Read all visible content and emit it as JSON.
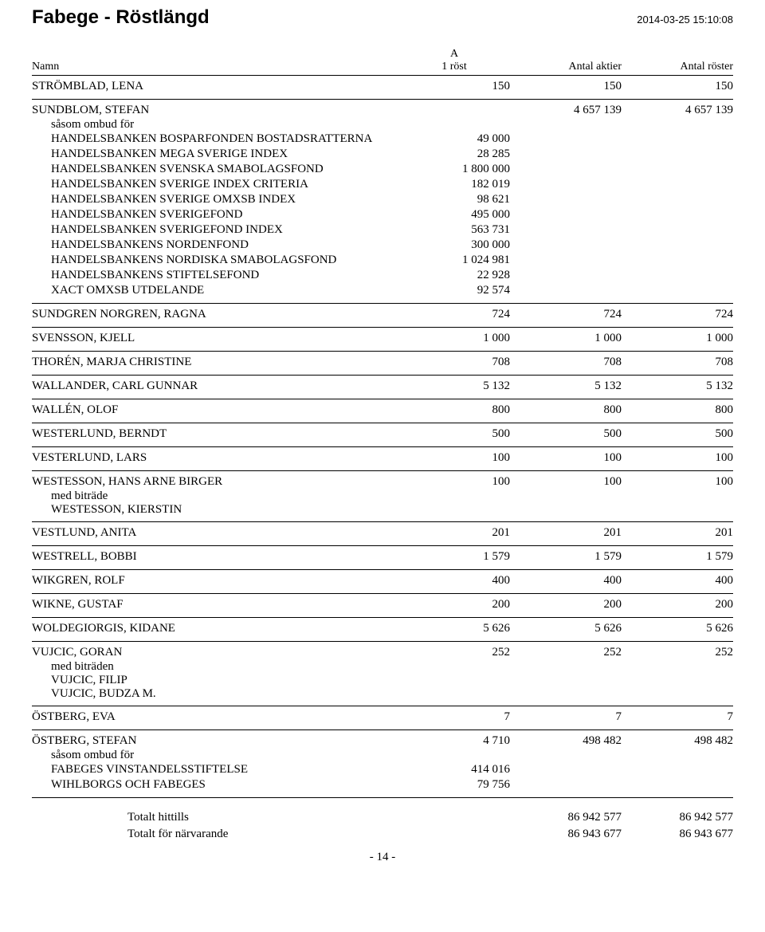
{
  "header": {
    "title": "Fabege - Röstlängd",
    "timestamp": "2014-03-25 15:10:08"
  },
  "columns": {
    "name": "Namn",
    "a_top": "A",
    "a_bottom": "1 röst",
    "antal_aktier": "Antal aktier",
    "antal_roster": "Antal röster"
  },
  "sections": [
    {
      "main": {
        "name": "STRÖMBLAD, LENA",
        "c1": "150",
        "c2": "150",
        "c3": "150"
      }
    },
    {
      "main": {
        "name": "SUNDBLOM, STEFAN",
        "c1": "",
        "c2": "4 657 139",
        "c3": "4 657 139"
      },
      "note": "såsom ombud för",
      "subs": [
        {
          "name": "HANDELSBANKEN BOSPARFONDEN BOSTADSRATTERNA",
          "val": "49 000"
        },
        {
          "name": "HANDELSBANKEN MEGA SVERIGE INDEX",
          "val": "28 285"
        },
        {
          "name": "HANDELSBANKEN SVENSKA SMABOLAGSFOND",
          "val": "1 800 000"
        },
        {
          "name": "HANDELSBANKEN SVERIGE INDEX CRITERIA",
          "val": "182 019"
        },
        {
          "name": "HANDELSBANKEN SVERIGE OMXSB INDEX",
          "val": "98 621"
        },
        {
          "name": "HANDELSBANKEN SVERIGEFOND",
          "val": "495 000"
        },
        {
          "name": "HANDELSBANKEN SVERIGEFOND INDEX",
          "val": "563 731"
        },
        {
          "name": "HANDELSBANKENS NORDENFOND",
          "val": "300 000"
        },
        {
          "name": "HANDELSBANKENS NORDISKA SMABOLAGSFOND",
          "val": "1 024 981"
        },
        {
          "name": "HANDELSBANKENS STIFTELSEFOND",
          "val": "22 928"
        },
        {
          "name": "XACT OMXSB UTDELANDE",
          "val": "92 574"
        }
      ]
    },
    {
      "main": {
        "name": "SUNDGREN NORGREN, RAGNA",
        "c1": "724",
        "c2": "724",
        "c3": "724"
      }
    },
    {
      "main": {
        "name": "SVENSSON, KJELL",
        "c1": "1 000",
        "c2": "1 000",
        "c3": "1 000"
      }
    },
    {
      "main": {
        "name": "THORÉN, MARJA CHRISTINE",
        "c1": "708",
        "c2": "708",
        "c3": "708"
      }
    },
    {
      "main": {
        "name": "WALLANDER, CARL GUNNAR",
        "c1": "5 132",
        "c2": "5 132",
        "c3": "5 132"
      }
    },
    {
      "main": {
        "name": "WALLÉN, OLOF",
        "c1": "800",
        "c2": "800",
        "c3": "800"
      }
    },
    {
      "main": {
        "name": "WESTERLUND, BERNDT",
        "c1": "500",
        "c2": "500",
        "c3": "500"
      }
    },
    {
      "main": {
        "name": "VESTERLUND, LARS",
        "c1": "100",
        "c2": "100",
        "c3": "100"
      }
    },
    {
      "main": {
        "name": "WESTESSON, HANS ARNE BIRGER",
        "c1": "100",
        "c2": "100",
        "c3": "100"
      },
      "note": "med biträde",
      "textsubs": [
        "WESTESSON, KIERSTIN"
      ]
    },
    {
      "main": {
        "name": "VESTLUND, ANITA",
        "c1": "201",
        "c2": "201",
        "c3": "201"
      }
    },
    {
      "main": {
        "name": "WESTRELL, BOBBI",
        "c1": "1 579",
        "c2": "1 579",
        "c3": "1 579"
      }
    },
    {
      "main": {
        "name": "WIKGREN, ROLF",
        "c1": "400",
        "c2": "400",
        "c3": "400"
      }
    },
    {
      "main": {
        "name": "WIKNE, GUSTAF",
        "c1": "200",
        "c2": "200",
        "c3": "200"
      }
    },
    {
      "main": {
        "name": "WOLDEGIORGIS, KIDANE",
        "c1": "5 626",
        "c2": "5 626",
        "c3": "5 626"
      }
    },
    {
      "main": {
        "name": "VUJCIC, GORAN",
        "c1": "252",
        "c2": "252",
        "c3": "252"
      },
      "note": "med biträden",
      "textsubs": [
        "VUJCIC, FILIP",
        "VUJCIC, BUDZA M."
      ]
    },
    {
      "main": {
        "name": "ÖSTBERG, EVA",
        "c1": "7",
        "c2": "7",
        "c3": "7"
      }
    },
    {
      "main": {
        "name": "ÖSTBERG, STEFAN",
        "c1": "4 710",
        "c2": "498 482",
        "c3": "498 482"
      },
      "note": "såsom ombud för",
      "subs": [
        {
          "name": "FABEGES VINSTANDELSSTIFTELSE",
          "val": "414 016"
        },
        {
          "name": "WIHLBORGS OCH FABEGES",
          "val": "79 756"
        }
      ]
    }
  ],
  "totals": [
    {
      "label": "Totalt hittills",
      "v1": "86 942 577",
      "v2": "86 942 577"
    },
    {
      "label": "Totalt för närvarande",
      "v1": "86 943 677",
      "v2": "86 943 677"
    }
  ],
  "page": "- 14 -"
}
